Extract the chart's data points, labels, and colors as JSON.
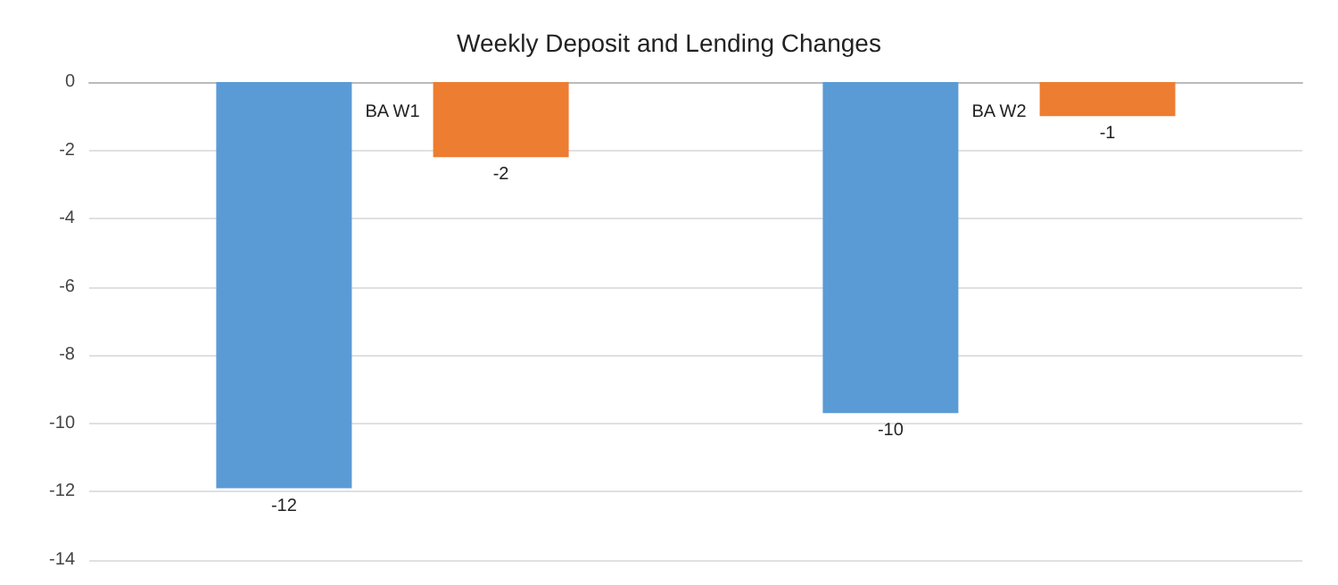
{
  "chart_data": {
    "type": "bar",
    "title": "Weekly Deposit and Lending Changes",
    "categories": [
      "BA W1",
      "BA W2"
    ],
    "series": [
      {
        "color": "#5b9bd5",
        "values": [
          -11.9,
          -9.7
        ],
        "value_labels": [
          "-12",
          "-10"
        ]
      },
      {
        "color": "#ed7d31",
        "values": [
          -2.2,
          -1.0
        ],
        "value_labels": [
          "-2",
          "-1"
        ]
      }
    ],
    "ylim": [
      -14,
      0
    ],
    "yticks": [
      -14,
      -12,
      -10,
      -8,
      -6,
      -4,
      -2,
      0
    ],
    "grid": "y"
  }
}
